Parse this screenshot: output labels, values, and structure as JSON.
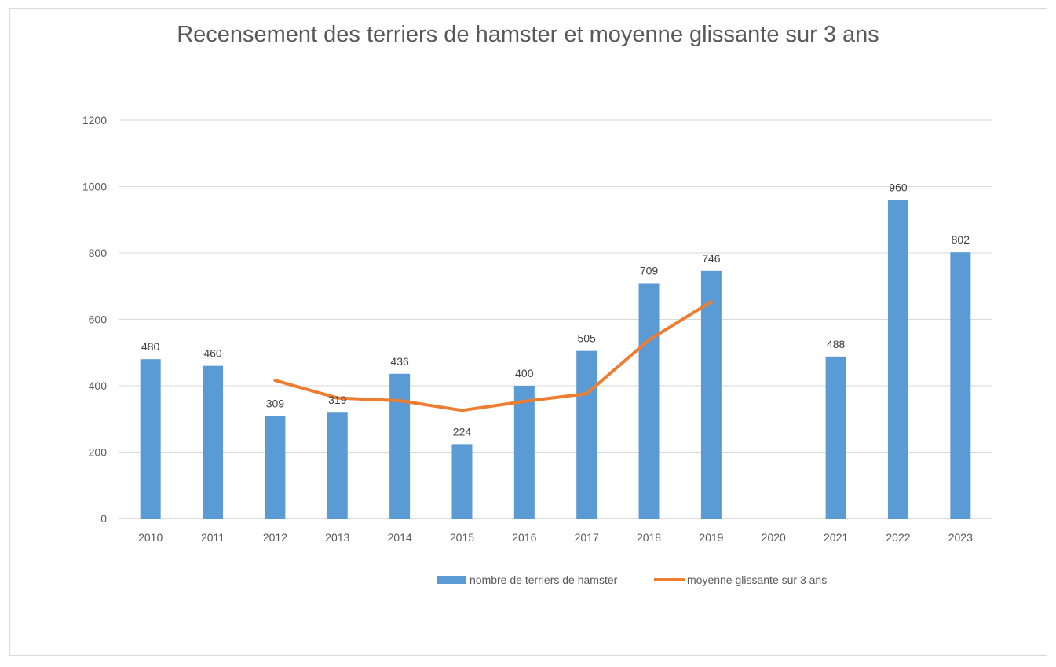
{
  "chart_data": {
    "type": "bar",
    "title": "Recensement des terriers de hamster et moyenne glissante sur 3 ans",
    "categories": [
      "2010",
      "2011",
      "2012",
      "2013",
      "2014",
      "2015",
      "2016",
      "2017",
      "2018",
      "2019",
      "2020",
      "2021",
      "2022",
      "2023"
    ],
    "series": [
      {
        "name": "nombre de terriers de hamster",
        "type": "bar",
        "color": "#5b9bd5",
        "values": [
          480,
          460,
          309,
          319,
          436,
          224,
          400,
          505,
          709,
          746,
          null,
          488,
          960,
          802
        ],
        "labels": [
          "480",
          "460",
          "309",
          "319",
          "436",
          "224",
          "400",
          "505",
          "709",
          "746",
          "",
          "488",
          "960",
          "802"
        ]
      },
      {
        "name": "moyenne glissante sur 3 ans",
        "type": "line",
        "color": "#ed7d31",
        "values": [
          null,
          null,
          416,
          363,
          355,
          326,
          353,
          376,
          538,
          653,
          null,
          null,
          null,
          null
        ]
      }
    ],
    "ylim": [
      0,
      1200
    ],
    "yticks": [
      0,
      200,
      400,
      600,
      800,
      1000,
      1200
    ],
    "ytick_labels": [
      "0",
      "200",
      "400",
      "600",
      "800",
      "1000",
      "1200"
    ],
    "grid": true,
    "legend": "bottom"
  }
}
